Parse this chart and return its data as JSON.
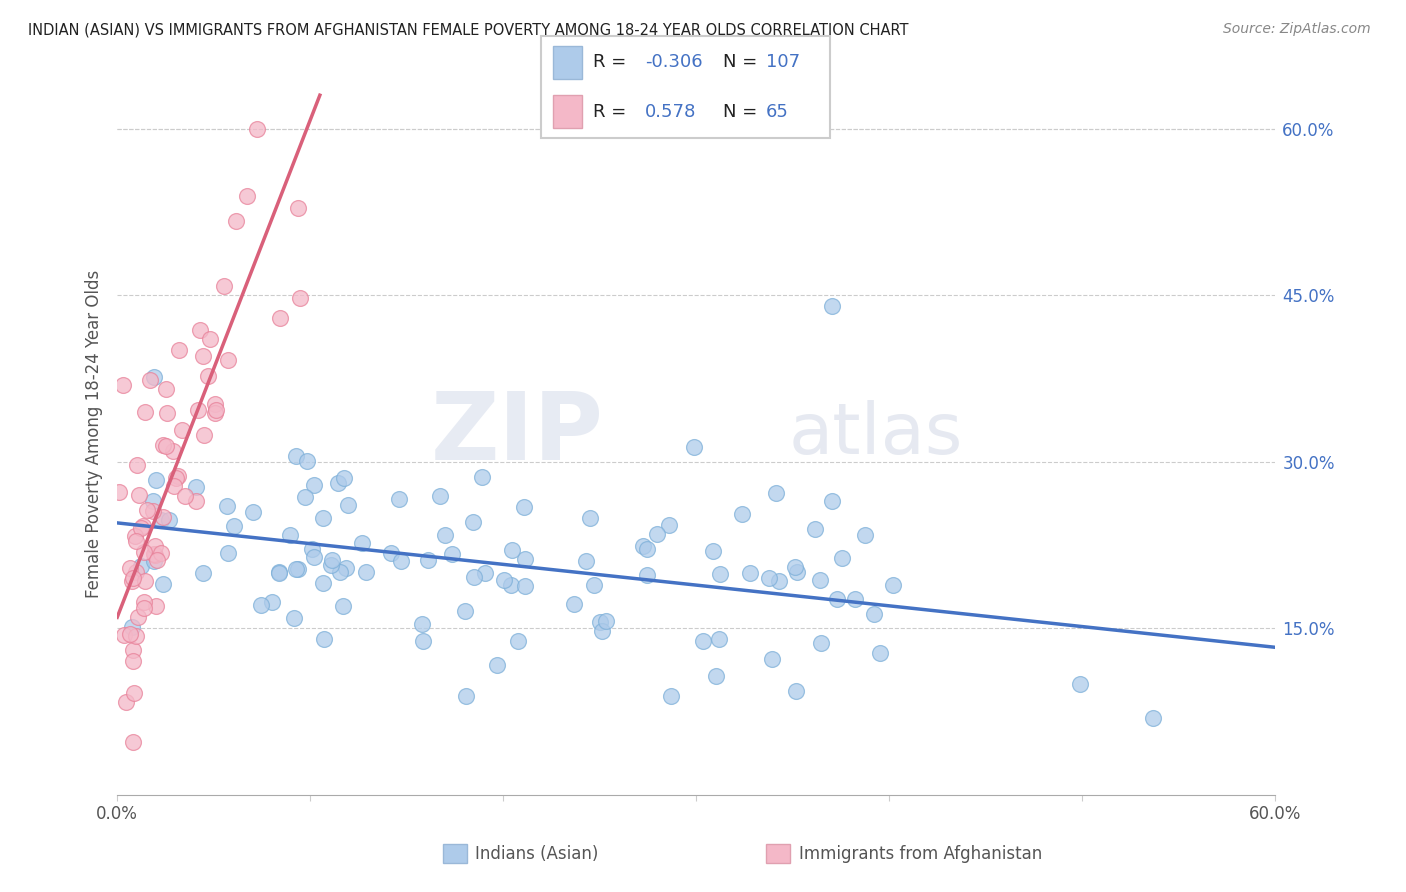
{
  "title": "INDIAN (ASIAN) VS IMMIGRANTS FROM AFGHANISTAN FEMALE POVERTY AMONG 18-24 YEAR OLDS CORRELATION CHART",
  "source": "Source: ZipAtlas.com",
  "ylabel": "Female Poverty Among 18-24 Year Olds",
  "xlim": [
    0.0,
    0.6
  ],
  "ylim": [
    0.0,
    0.65
  ],
  "yticks_right": [
    0.15,
    0.3,
    0.45,
    0.6
  ],
  "ytick_labels_right": [
    "15.0%",
    "30.0%",
    "45.0%",
    "60.0%"
  ],
  "blue_color": "#AECBEA",
  "blue_edge": "#7EB0D9",
  "pink_color": "#F4B8C8",
  "pink_edge": "#E8829A",
  "blue_line_color": "#4472C4",
  "pink_line_color": "#D9607A",
  "R_blue": -0.306,
  "N_blue": 107,
  "R_pink": 0.578,
  "N_pink": 65,
  "legend_label_blue": "Indians (Asian)",
  "legend_label_pink": "Immigrants from Afghanistan",
  "watermark_zip": "ZIP",
  "watermark_atlas": "atlas",
  "blue_line_x": [
    0.0,
    0.6
  ],
  "blue_line_y": [
    0.245,
    0.133
  ],
  "pink_line_x": [
    0.0,
    0.105
  ],
  "pink_line_y": [
    0.16,
    0.63
  ]
}
